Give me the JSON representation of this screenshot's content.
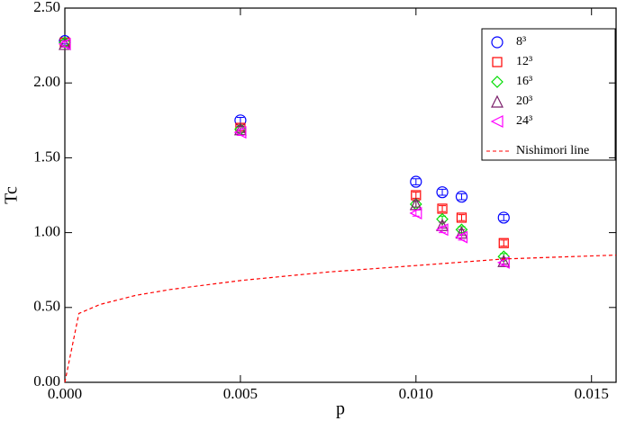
{
  "chart_data": {
    "type": "scatter",
    "xlabel": "p",
    "ylabel": "Tc",
    "xlim": [
      0,
      0.0157
    ],
    "ylim": [
      0,
      2.5
    ],
    "xticks": [
      {
        "value": 0,
        "label": "0.000"
      },
      {
        "value": 0.005,
        "label": "0.005"
      },
      {
        "value": 0.01,
        "label": "0.010"
      },
      {
        "value": 0.015,
        "label": "0.015"
      }
    ],
    "yticks": [
      {
        "value": 0,
        "label": "0.00"
      },
      {
        "value": 0.5,
        "label": "0.50"
      },
      {
        "value": 1,
        "label": "1.00"
      },
      {
        "value": 1.5,
        "label": "1.50"
      },
      {
        "value": 2,
        "label": "2.00"
      },
      {
        "value": 2.5,
        "label": "2.50"
      }
    ],
    "legend": "upper right",
    "x": [
      0,
      0.005,
      0.01,
      0.01075,
      0.0113,
      0.0125
    ],
    "series": [
      {
        "name": "8³",
        "color": "#0000ff",
        "marker": "circle",
        "values": [
          2.28,
          1.75,
          1.34,
          1.27,
          1.24,
          1.1
        ],
        "errors": [
          0.02,
          0.02,
          0.02,
          0.02,
          0.02,
          0.02
        ]
      },
      {
        "name": "12³",
        "color": "#ff0000",
        "marker": "square",
        "values": [
          2.27,
          1.7,
          1.25,
          1.16,
          1.1,
          0.93
        ],
        "errors": [
          0.02,
          0.02,
          0.02,
          0.02,
          0.02,
          0.02
        ]
      },
      {
        "name": "16³",
        "color": "#00dd00",
        "marker": "diamond",
        "values": [
          2.27,
          1.69,
          1.19,
          1.09,
          1.02,
          0.84
        ],
        "errors": [
          0.02,
          0.02,
          0.02,
          0.02,
          0.02,
          0.02
        ]
      },
      {
        "name": "20³",
        "color": "#7b1f6a",
        "marker": "triangle-up",
        "values": [
          2.26,
          1.69,
          1.19,
          1.05,
          1.0,
          0.81
        ],
        "errors": [
          0.02,
          0.02,
          0.02,
          0.02,
          0.02,
          0.02
        ]
      },
      {
        "name": "24³",
        "color": "#ff00ff",
        "marker": "triangle-left",
        "values": [
          2.26,
          1.67,
          1.13,
          1.02,
          0.97,
          0.8
        ],
        "errors": [
          0.02,
          0.02,
          0.02,
          0.02,
          0.02,
          0.02
        ]
      },
      {
        "name": "Nishimori line",
        "color": "#ff0000",
        "marker": "dashed-line",
        "x": [
          0,
          0.0004,
          0.001,
          0.002,
          0.003,
          0.005,
          0.0075,
          0.01,
          0.0125,
          0.0157
        ],
        "values": [
          0,
          0.46,
          0.52,
          0.58,
          0.62,
          0.68,
          0.737,
          0.78,
          0.824,
          0.85
        ]
      }
    ]
  }
}
